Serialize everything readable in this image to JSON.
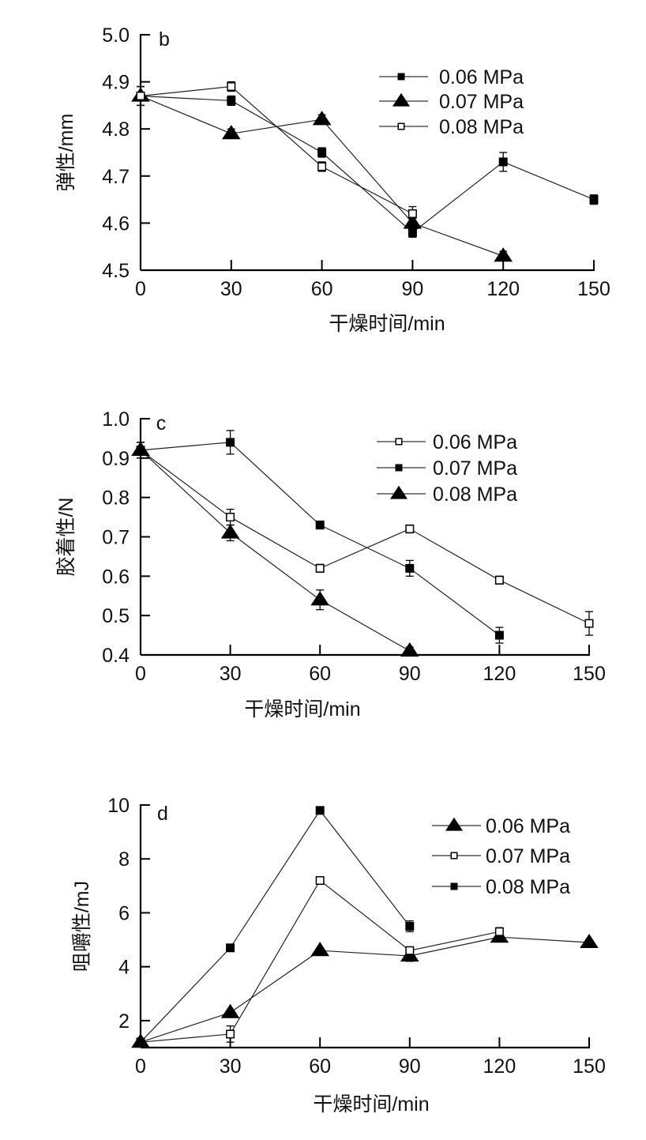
{
  "chart_data": [
    {
      "type": "line",
      "panel_label": "b",
      "xlabel": "干燥时间/min",
      "ylabel": "弹性/mm",
      "x": [
        0,
        30,
        60,
        90,
        120,
        150
      ],
      "x_ticks": [
        "0",
        "30",
        "60",
        "90",
        "120",
        "150"
      ],
      "xlim": [
        0,
        150
      ],
      "ylim": [
        4.5,
        5.0
      ],
      "y_ticks": [
        "4.5",
        "4.6",
        "4.7",
        "4.8",
        "4.9",
        "5.0"
      ],
      "grid": false,
      "legend_position": "top-right",
      "series": [
        {
          "name": "0.06 MPa",
          "marker": "filled-square",
          "values": [
            4.87,
            4.86,
            4.75,
            4.58,
            4.73,
            4.65
          ],
          "errors": [
            0.02,
            0.01,
            0.01,
            0.01,
            0.02,
            0.01
          ]
        },
        {
          "name": "0.07 MPa",
          "marker": "filled-triangle",
          "values": [
            4.87,
            4.79,
            4.82,
            4.6,
            4.53,
            null
          ],
          "errors": [
            0.02,
            0.01,
            0.01,
            0.01,
            0.01,
            null
          ]
        },
        {
          "name": "0.08 MPa",
          "marker": "open-square",
          "values": [
            4.87,
            4.89,
            4.72,
            4.62,
            null,
            null
          ],
          "errors": [
            0.02,
            0.01,
            0.01,
            0.015,
            null,
            null
          ]
        }
      ]
    },
    {
      "type": "line",
      "panel_label": "c",
      "xlabel": "干燥时间/min",
      "ylabel": "胶着性/N",
      "x": [
        0,
        30,
        60,
        90,
        120,
        150
      ],
      "x_ticks": [
        "0",
        "30",
        "60",
        "90",
        "120",
        "150"
      ],
      "xlim": [
        0,
        150
      ],
      "ylim": [
        0.4,
        1.0
      ],
      "y_ticks": [
        "0.4",
        "0.5",
        "0.6",
        "0.7",
        "0.8",
        "0.9",
        "1.0"
      ],
      "grid": false,
      "legend_position": "top-right",
      "series": [
        {
          "name": "0.06 MPa",
          "marker": "open-square",
          "values": [
            0.92,
            0.75,
            0.62,
            0.72,
            0.59,
            0.48
          ],
          "errors": [
            0.02,
            0.02,
            0.01,
            0.01,
            0.01,
            0.03
          ]
        },
        {
          "name": "0.07 MPa",
          "marker": "filled-square",
          "values": [
            0.92,
            0.94,
            0.73,
            0.62,
            0.45,
            null
          ],
          "errors": [
            0.02,
            0.03,
            0.01,
            0.02,
            0.02,
            null
          ]
        },
        {
          "name": "0.08 MPa",
          "marker": "filled-triangle",
          "values": [
            0.92,
            0.71,
            0.54,
            0.41,
            null,
            null
          ],
          "errors": [
            0.02,
            0.02,
            0.025,
            0.01,
            null,
            null
          ]
        }
      ]
    },
    {
      "type": "line",
      "panel_label": "d",
      "xlabel": "干燥时间/min",
      "ylabel": "咀嚼性/mJ",
      "x": [
        0,
        30,
        60,
        90,
        120,
        150
      ],
      "x_ticks": [
        "0",
        "30",
        "60",
        "90",
        "120",
        "150"
      ],
      "xlim": [
        0,
        150
      ],
      "ylim": [
        1.0,
        10
      ],
      "y_ticks": [
        "2",
        "4",
        "6",
        "8",
        "10"
      ],
      "grid": false,
      "legend_position": "top-right",
      "series": [
        {
          "name": "0.06 MPa",
          "marker": "filled-triangle",
          "values": [
            1.2,
            2.3,
            4.6,
            4.4,
            5.1,
            4.9
          ],
          "errors": [
            0.05,
            0.05,
            0.05,
            0.2,
            0.15,
            0.05
          ]
        },
        {
          "name": "0.07 MPa",
          "marker": "open-square",
          "values": [
            1.2,
            1.5,
            7.2,
            4.6,
            5.3,
            null
          ],
          "errors": [
            0.05,
            0.3,
            0.05,
            0.05,
            0.15,
            null
          ]
        },
        {
          "name": "0.08 MPa",
          "marker": "filled-square",
          "values": [
            1.2,
            4.7,
            9.8,
            5.5,
            null,
            null
          ],
          "errors": [
            0.05,
            0.05,
            0.05,
            0.2,
            null,
            null
          ]
        }
      ]
    }
  ]
}
